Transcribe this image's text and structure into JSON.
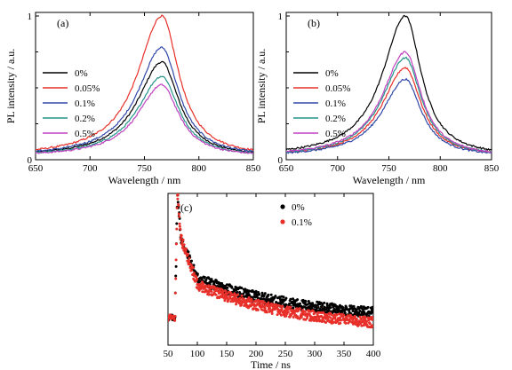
{
  "chart_data": [
    {
      "type": "line",
      "panel_label": "(a)",
      "xlabel": "Wavelength / nm",
      "ylabel": "PL intensity / a.u.",
      "xlim": [
        650,
        850
      ],
      "ylim": [
        0,
        1.0
      ],
      "xticks": [
        650,
        700,
        750,
        800,
        850
      ],
      "yticks": [
        0,
        1
      ],
      "legend_position": "left",
      "peak_wavelength": 766,
      "series": [
        {
          "name": "0%",
          "color": "#000000",
          "peak": 0.68,
          "baseline": 0.02
        },
        {
          "name": "0.05%",
          "color": "#e8302a",
          "peak": 1.0,
          "baseline": 0.02
        },
        {
          "name": "0.1%",
          "color": "#3048a8",
          "peak": 0.78,
          "baseline": 0.02
        },
        {
          "name": "0.2%",
          "color": "#239488",
          "peak": 0.58,
          "baseline": 0.02
        },
        {
          "name": "0.5%",
          "color": "#c040c0",
          "peak": 0.52,
          "baseline": 0.02
        }
      ]
    },
    {
      "type": "line",
      "panel_label": "(b)",
      "xlabel": "Wavelength / nm",
      "ylabel": "PL intensity / a.u.",
      "xlim": [
        650,
        850
      ],
      "ylim": [
        0,
        1.0
      ],
      "xticks": [
        650,
        700,
        750,
        800,
        850
      ],
      "yticks": [
        0,
        1
      ],
      "legend_position": "left",
      "peak_wavelength": 766,
      "series": [
        {
          "name": "0%",
          "color": "#000000",
          "peak": 1.0,
          "baseline": 0.02
        },
        {
          "name": "0.05%",
          "color": "#e8302a",
          "peak": 0.64,
          "baseline": 0.02
        },
        {
          "name": "0.1%",
          "color": "#3048a8",
          "peak": 0.56,
          "baseline": 0.02
        },
        {
          "name": "0.2%",
          "color": "#239488",
          "peak": 0.71,
          "baseline": 0.02
        },
        {
          "name": "0.5%",
          "color": "#c040c0",
          "peak": 0.75,
          "baseline": 0.02
        }
      ]
    },
    {
      "type": "scatter",
      "panel_label": "(c)",
      "xlabel": "Time / ns",
      "xlim": [
        50,
        400
      ],
      "ylim": [
        0,
        1.0
      ],
      "xticks": [
        50,
        100,
        150,
        200,
        250,
        300,
        350,
        400
      ],
      "legend_position": "top-right",
      "series": [
        {
          "name": "0%",
          "color": "#000000",
          "level_at_100": 0.44,
          "level_at_400": 0.17
        },
        {
          "name": "0.1%",
          "color": "#e8302a",
          "level_at_100": 0.4,
          "level_at_400": 0.1
        }
      ]
    }
  ]
}
